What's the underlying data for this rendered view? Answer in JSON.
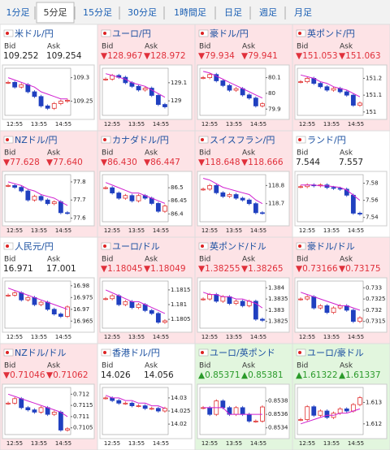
{
  "tabs": [
    "1分足",
    "5分足",
    "15分足",
    "30分足",
    "1時間足",
    "日足",
    "週足",
    "月足"
  ],
  "selected_tab": 1,
  "labels": {
    "bid": "Bid",
    "ask": "Ask"
  },
  "time_labels": [
    "12:55",
    "13:55",
    "14:55"
  ],
  "panels": [
    {
      "name": "米ドル/円",
      "bid": "109.252",
      "ask": "109.254",
      "trend": "flat",
      "ylim": [
        109.22,
        109.32
      ],
      "yticks": [
        109.3,
        109.25
      ],
      "prices": [
        109.29,
        109.28,
        109.285,
        109.27,
        109.26,
        109.24,
        109.235,
        109.245,
        109.25,
        109.252
      ],
      "ma": [
        109.3,
        109.295,
        109.29,
        109.285,
        109.28,
        109.27,
        109.265,
        109.26,
        109.255,
        109.255
      ]
    },
    {
      "name": "ユーロ/円",
      "bid": "▼128.967",
      "ask": "▼128.972",
      "trend": "down",
      "ylim": [
        128.92,
        129.18
      ],
      "yticks": [
        129.1,
        129
      ],
      "prices": [
        129.12,
        129.14,
        129.13,
        129.1,
        129.08,
        129.06,
        129.07,
        129.03,
        128.98,
        128.967
      ],
      "ma": [
        129.15,
        129.14,
        129.13,
        129.12,
        129.1,
        129.09,
        129.08,
        129.06,
        129.04,
        129.02
      ]
    },
    {
      "name": "豪ドル/円",
      "bid": "▼79.934",
      "ask": "▼79.941",
      "trend": "down",
      "ylim": [
        79.86,
        80.16
      ],
      "yticks": [
        80.1,
        80,
        79.9
      ],
      "prices": [
        80.1,
        80.12,
        80.08,
        80.05,
        80.02,
        80.03,
        79.99,
        79.97,
        79.92,
        79.934
      ],
      "ma": [
        80.14,
        80.13,
        80.11,
        80.09,
        80.07,
        80.05,
        80.03,
        80.01,
        79.99,
        79.97
      ]
    },
    {
      "name": "英ポンド/円",
      "bid": "▼151.053",
      "ask": "▼151.063",
      "trend": "down",
      "ylim": [
        150.98,
        151.26
      ],
      "yticks": [
        151.2,
        151.1,
        151
      ],
      "prices": [
        151.18,
        151.2,
        151.17,
        151.15,
        151.13,
        151.14,
        151.12,
        151.1,
        151.04,
        151.053
      ],
      "ma": [
        151.22,
        151.21,
        151.2,
        151.18,
        151.17,
        151.15,
        151.14,
        151.13,
        151.11,
        151.09
      ]
    },
    {
      "name": "NZドル/円",
      "bid": "▼77.628",
      "ask": "▼77.640",
      "trend": "down",
      "ylim": [
        77.58,
        77.84
      ],
      "yticks": [
        77.8,
        77.7,
        77.6
      ],
      "prices": [
        77.78,
        77.77,
        77.75,
        77.7,
        77.72,
        77.7,
        77.68,
        77.69,
        77.63,
        77.628
      ],
      "ma": [
        77.8,
        77.79,
        77.78,
        77.76,
        77.75,
        77.73,
        77.72,
        77.71,
        77.69,
        77.67
      ]
    },
    {
      "name": "カナダドル/円",
      "bid": "▼86.430",
      "ask": "▼86.447",
      "trend": "down",
      "ylim": [
        86.37,
        86.55
      ],
      "yticks": [
        86.5,
        86.45,
        86.4
      ],
      "prices": [
        86.5,
        86.48,
        86.46,
        86.47,
        86.45,
        86.47,
        86.46,
        86.44,
        86.41,
        86.43
      ],
      "ma": [
        86.52,
        86.51,
        86.5,
        86.49,
        86.48,
        86.48,
        86.47,
        86.46,
        86.45,
        86.44
      ]
    },
    {
      "name": "スイスフラン/円",
      "bid": "▼118.648",
      "ask": "▼118.666",
      "trend": "down",
      "ylim": [
        118.6,
        118.86
      ],
      "yticks": [
        118.8,
        118.7
      ],
      "prices": [
        118.78,
        118.8,
        118.76,
        118.74,
        118.75,
        118.73,
        118.72,
        118.7,
        118.65,
        118.648
      ],
      "ma": [
        118.84,
        118.83,
        118.81,
        118.79,
        118.78,
        118.77,
        118.76,
        118.75,
        118.72,
        118.7
      ]
    },
    {
      "name": "ランド/円",
      "bid": "7.544",
      "ask": "7.557",
      "trend": "flat",
      "ylim": [
        7.535,
        7.59
      ],
      "yticks": [
        7.58,
        7.56,
        7.54
      ],
      "prices": [
        7.576,
        7.578,
        7.577,
        7.578,
        7.575,
        7.574,
        7.573,
        7.566,
        7.545,
        7.544
      ],
      "ma": [
        7.578,
        7.578,
        7.578,
        7.577,
        7.577,
        7.576,
        7.575,
        7.572,
        7.566,
        7.56
      ]
    },
    {
      "name": "人民元/円",
      "bid": "16.971",
      "ask": "17.001",
      "trend": "flat",
      "ylim": [
        16.962,
        16.982
      ],
      "yticks": [
        16.98,
        16.975,
        16.97,
        16.965
      ],
      "prices": [
        16.976,
        16.977,
        16.974,
        16.975,
        16.972,
        16.973,
        16.97,
        16.968,
        16.967,
        16.971
      ],
      "ma": [
        16.979,
        16.978,
        16.977,
        16.976,
        16.975,
        16.974,
        16.973,
        16.972,
        16.971,
        16.97
      ]
    },
    {
      "name": "ユーロ/ドル",
      "bid": "▼1.18045",
      "ask": "▼1.18049",
      "trend": "down",
      "ylim": [
        1.1802,
        1.1818
      ],
      "yticks": [
        1.1815,
        1.181,
        1.1805
      ],
      "prices": [
        1.1812,
        1.1813,
        1.181,
        1.1811,
        1.1809,
        1.181,
        1.1808,
        1.1807,
        1.1804,
        1.18045
      ],
      "ma": [
        1.1815,
        1.1814,
        1.1813,
        1.1812,
        1.1811,
        1.1811,
        1.181,
        1.1809,
        1.1808,
        1.1807
      ]
    },
    {
      "name": "英ポンド/ドル",
      "bid": "▼1.38255",
      "ask": "▼1.38265",
      "trend": "down",
      "ylim": [
        1.3822,
        1.3843
      ],
      "yticks": [
        1.384,
        1.3835,
        1.383,
        1.3825
      ],
      "prices": [
        1.3835,
        1.3837,
        1.3834,
        1.3836,
        1.3833,
        1.3834,
        1.3832,
        1.3834,
        1.3826,
        1.38255
      ],
      "ma": [
        1.3838,
        1.3837,
        1.3837,
        1.3836,
        1.3836,
        1.3835,
        1.3835,
        1.3834,
        1.3833,
        1.3831
      ]
    },
    {
      "name": "豪ドル/ドル",
      "bid": "▼0.73166",
      "ask": "▼0.73175",
      "trend": "down",
      "ylim": [
        0.7312,
        0.7333
      ],
      "yticks": [
        0.733,
        0.7325,
        0.732,
        0.7315
      ],
      "prices": [
        0.7325,
        0.7326,
        0.7321,
        0.7322,
        0.7319,
        0.7321,
        0.7322,
        0.732,
        0.7315,
        0.73166
      ],
      "ma": [
        0.7328,
        0.7327,
        0.7326,
        0.7325,
        0.7324,
        0.7323,
        0.7322,
        0.7322,
        0.7321,
        0.732
      ]
    },
    {
      "name": "NZドル/ドル",
      "bid": "▼0.71046",
      "ask": "▼0.71062",
      "trend": "down",
      "ylim": [
        0.7102,
        0.7123
      ],
      "yticks": [
        0.712,
        0.7115,
        0.711,
        0.7105
      ],
      "prices": [
        0.7116,
        0.7118,
        0.7114,
        0.7113,
        0.7112,
        0.7114,
        0.7111,
        0.7112,
        0.7104,
        0.71046
      ],
      "ma": [
        0.712,
        0.7119,
        0.7118,
        0.7117,
        0.7116,
        0.7115,
        0.7114,
        0.7113,
        0.7112,
        0.711
      ]
    },
    {
      "name": "香港ドル/円",
      "bid": "14.026",
      "ask": "14.056",
      "trend": "flat",
      "ylim": [
        14.016,
        14.034
      ],
      "yticks": [
        14.03,
        14.025,
        14.02
      ],
      "prices": [
        14.03,
        14.029,
        14.028,
        14.028,
        14.027,
        14.027,
        14.026,
        14.026,
        14.025,
        14.026
      ],
      "ma": [
        14.031,
        14.03,
        14.03,
        14.029,
        14.029,
        14.028,
        14.028,
        14.027,
        14.027,
        14.026
      ]
    },
    {
      "name": "ユーロ/英ポンド",
      "bid": "▲0.85371",
      "ask": "▲0.85381",
      "trend": "up",
      "ylim": [
        0.8533,
        0.854
      ],
      "yticks": [
        0.8538,
        0.8536,
        0.8534
      ],
      "prices": [
        0.8537,
        0.8536,
        0.8538,
        0.8537,
        0.8536,
        0.8537,
        0.8536,
        0.8535,
        0.8535,
        0.85371
      ],
      "ma": [
        0.8537,
        0.8537,
        0.8537,
        0.8537,
        0.8536,
        0.8536,
        0.8536,
        0.8536,
        0.8536,
        0.8536
      ]
    },
    {
      "name": "ユーロ/豪ドル",
      "bid": "▲1.61322",
      "ask": "▲1.61337",
      "trend": "up",
      "ylim": [
        1.6115,
        1.6137
      ],
      "yticks": [
        1.613,
        1.612
      ],
      "prices": [
        1.6122,
        1.6128,
        1.6124,
        1.6126,
        1.6123,
        1.6125,
        1.6127,
        1.6126,
        1.6129,
        1.61322
      ],
      "ma": [
        1.612,
        1.6121,
        1.6122,
        1.6123,
        1.6124,
        1.6124,
        1.6125,
        1.6125,
        1.6126,
        1.6127
      ]
    }
  ]
}
